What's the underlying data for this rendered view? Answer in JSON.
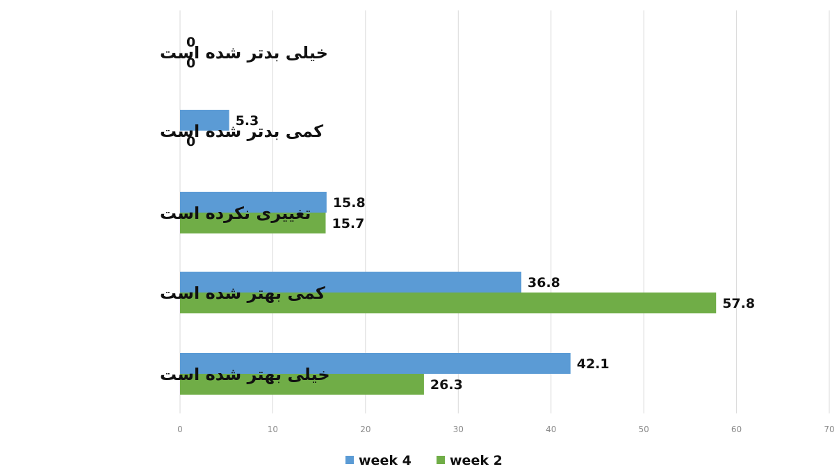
{
  "chart_data": {
    "type": "bar",
    "orientation": "horizontal",
    "categories": [
      "خیلی بدتر شده است",
      "کمی بدتر شده است",
      "تغییری نکرده است",
      "کمی بهتر شده است",
      "خیلی بهتر شده است"
    ],
    "series": [
      {
        "name": "week 4",
        "color": "#5b9bd5",
        "values": [
          0,
          5.3,
          15.8,
          36.8,
          42.1
        ]
      },
      {
        "name": "week 2",
        "color": "#70ad47",
        "values": [
          0,
          0,
          15.7,
          57.8,
          26.3
        ]
      }
    ],
    "xlim": [
      0,
      70
    ],
    "xticks": [
      0,
      10,
      20,
      30,
      40,
      50,
      60,
      70
    ],
    "grid": true,
    "legend_position": "bottom",
    "title": "",
    "xlabel": "",
    "ylabel": ""
  }
}
